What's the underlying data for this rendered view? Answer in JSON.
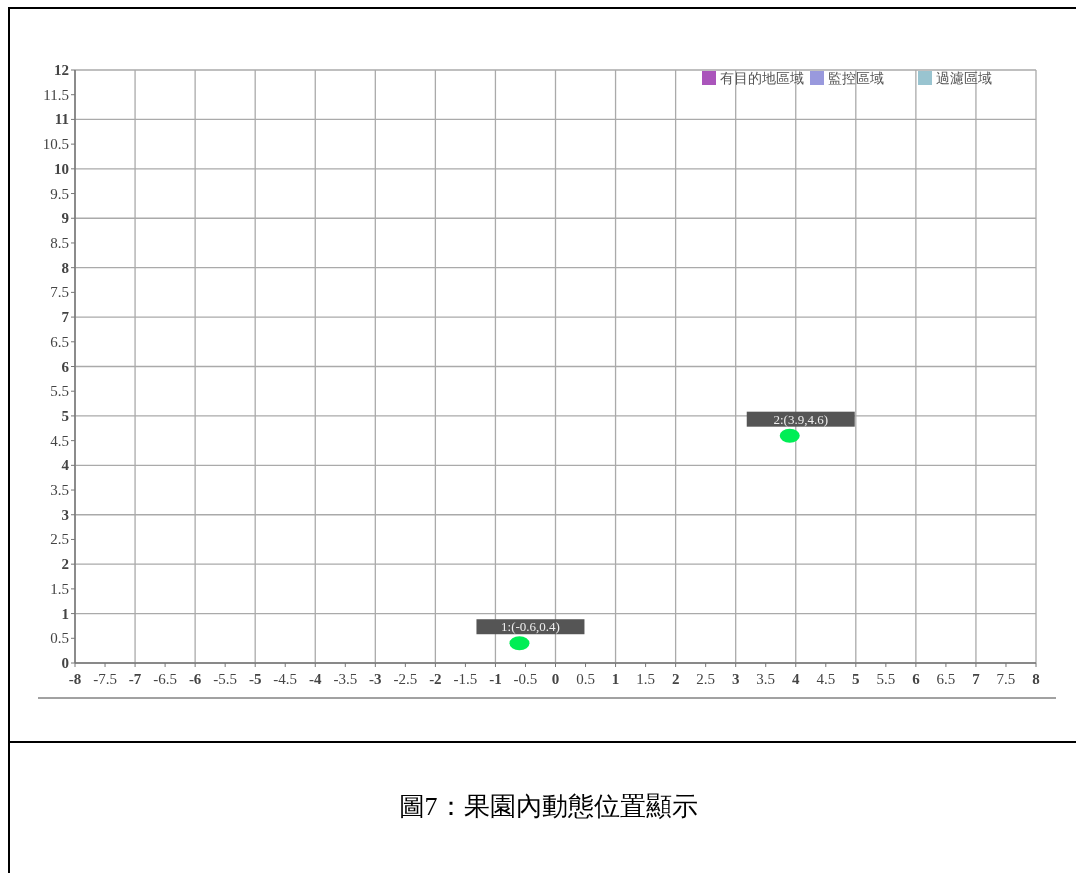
{
  "chart_data": {
    "type": "scatter",
    "title": "圖7：果園內動態位置顯示",
    "xlim": [
      -8,
      8
    ],
    "ylim": [
      0,
      12
    ],
    "xticks": [
      -8,
      -7.5,
      -7,
      -6.5,
      -6,
      -5.5,
      -5,
      -4.5,
      -4,
      -3.5,
      -3,
      -2.5,
      -2,
      -1.5,
      -1,
      -0.5,
      0,
      0.5,
      1,
      1.5,
      2,
      2.5,
      3,
      3.5,
      4,
      4.5,
      5,
      5.5,
      6,
      6.5,
      7,
      7.5,
      8
    ],
    "yticks": [
      0,
      0.5,
      1,
      1.5,
      2,
      2.5,
      3,
      3.5,
      4,
      4.5,
      5,
      5.5,
      6,
      6.5,
      7,
      7.5,
      8,
      8.5,
      9,
      9.5,
      10,
      10.5,
      11,
      11.5,
      12
    ],
    "grid": true,
    "legend": "top right",
    "marker": "circle",
    "series": [
      {
        "color": "#00ee55",
        "x": [
          -0.6,
          3.9
        ],
        "values": [
          0.4,
          4.6
        ],
        "value_labels": [
          "1:(-0.6,0.4)",
          "2:(3.9,4.6)"
        ]
      },
      {
        "name": "有目的地區域",
        "color": "#aa55bb"
      },
      {
        "name": "監控區域",
        "color": "#9999dd"
      },
      {
        "name": "過濾區域",
        "color": "#99c4d0"
      }
    ]
  }
}
